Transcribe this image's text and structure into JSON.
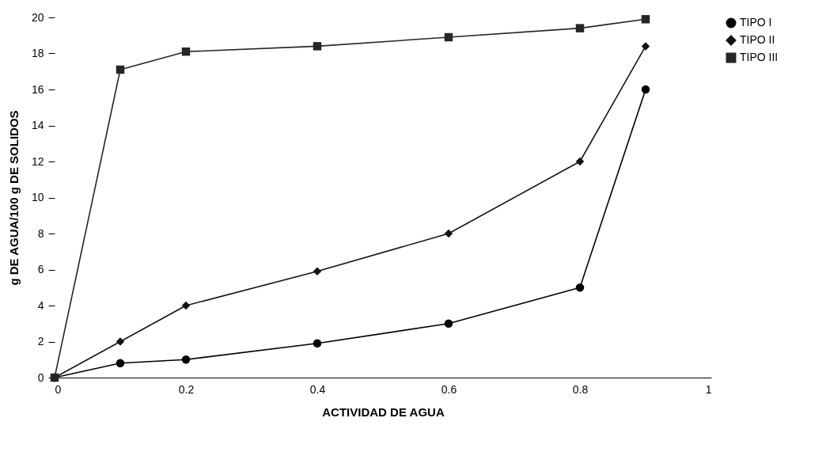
{
  "chart_data": {
    "type": "line",
    "xlabel": "ACTIVIDAD DE AGUA",
    "ylabel": "g DE AGUA/100 g DE SOLIDOS",
    "x": [
      0,
      0.1,
      0.2,
      0.4,
      0.6,
      0.8,
      0.9
    ],
    "series": [
      {
        "name": "TIPO I",
        "color": "#000000",
        "marker": "circle",
        "values": [
          0,
          0.8,
          1,
          1.9,
          3,
          5,
          16
        ]
      },
      {
        "name": "TIPO II",
        "color": "#141414",
        "marker": "diamond",
        "values": [
          0,
          2,
          4,
          5.9,
          8,
          12,
          18.4
        ]
      },
      {
        "name": "TIPO III",
        "color": "#262626",
        "marker": "square",
        "values": [
          0,
          17.1,
          18.1,
          18.4,
          18.9,
          19.4,
          19.9
        ]
      }
    ],
    "xlim": [
      0,
      1
    ],
    "xticks": [
      0,
      0.2,
      0.4,
      0.6,
      0.8,
      1
    ],
    "ylim": [
      0,
      20
    ],
    "yticks": [
      0,
      2,
      4,
      6,
      8,
      10,
      12,
      14,
      16,
      18,
      20
    ],
    "grid": false,
    "legend": "right",
    "line_style": "solid"
  }
}
